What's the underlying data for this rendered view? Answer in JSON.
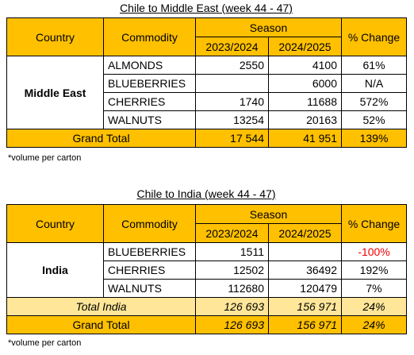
{
  "tables": [
    {
      "title": "Chile to Middle East (week 44 - 47)",
      "header": {
        "country": "Country",
        "commodity": "Commodity",
        "season": "Season",
        "seasons": [
          "2023/2024",
          "2024/2025"
        ],
        "change": "% Change"
      },
      "group": "Middle East",
      "rows": [
        [
          "ALMONDS",
          "2550",
          "4100",
          "61%"
        ],
        [
          "BLUEBERRIES",
          null,
          "6000",
          "N/A"
        ],
        [
          "CHERRIES",
          "1740",
          "11688",
          "572%"
        ],
        [
          "WALNUTS",
          "13254",
          "20163",
          "52%"
        ]
      ],
      "grand_total": [
        "Grand Total",
        "17 544",
        "41 951",
        "139%"
      ],
      "footnote": "*volume per carton"
    },
    {
      "title": "Chile to India (week 44 - 47)",
      "header": {
        "country": "Country",
        "commodity": "Commodity",
        "season": "Season",
        "seasons": [
          "2023/2024",
          "2024/2025"
        ],
        "change": "% Change"
      },
      "group": "India",
      "rows": [
        [
          "BLUEBERRIES",
          "1511",
          null,
          "-100%"
        ],
        [
          "CHERRIES",
          "12502",
          "36492",
          "192%"
        ],
        [
          "WALNUTS",
          "112680",
          "120479",
          "7%"
        ]
      ],
      "subtotal": [
        "Total India",
        "126 693",
        "156 971",
        "24%"
      ],
      "grand_total": [
        "Grand Total",
        "126 693",
        "156 971",
        "24%"
      ],
      "footnote": "*volume per carton"
    }
  ]
}
